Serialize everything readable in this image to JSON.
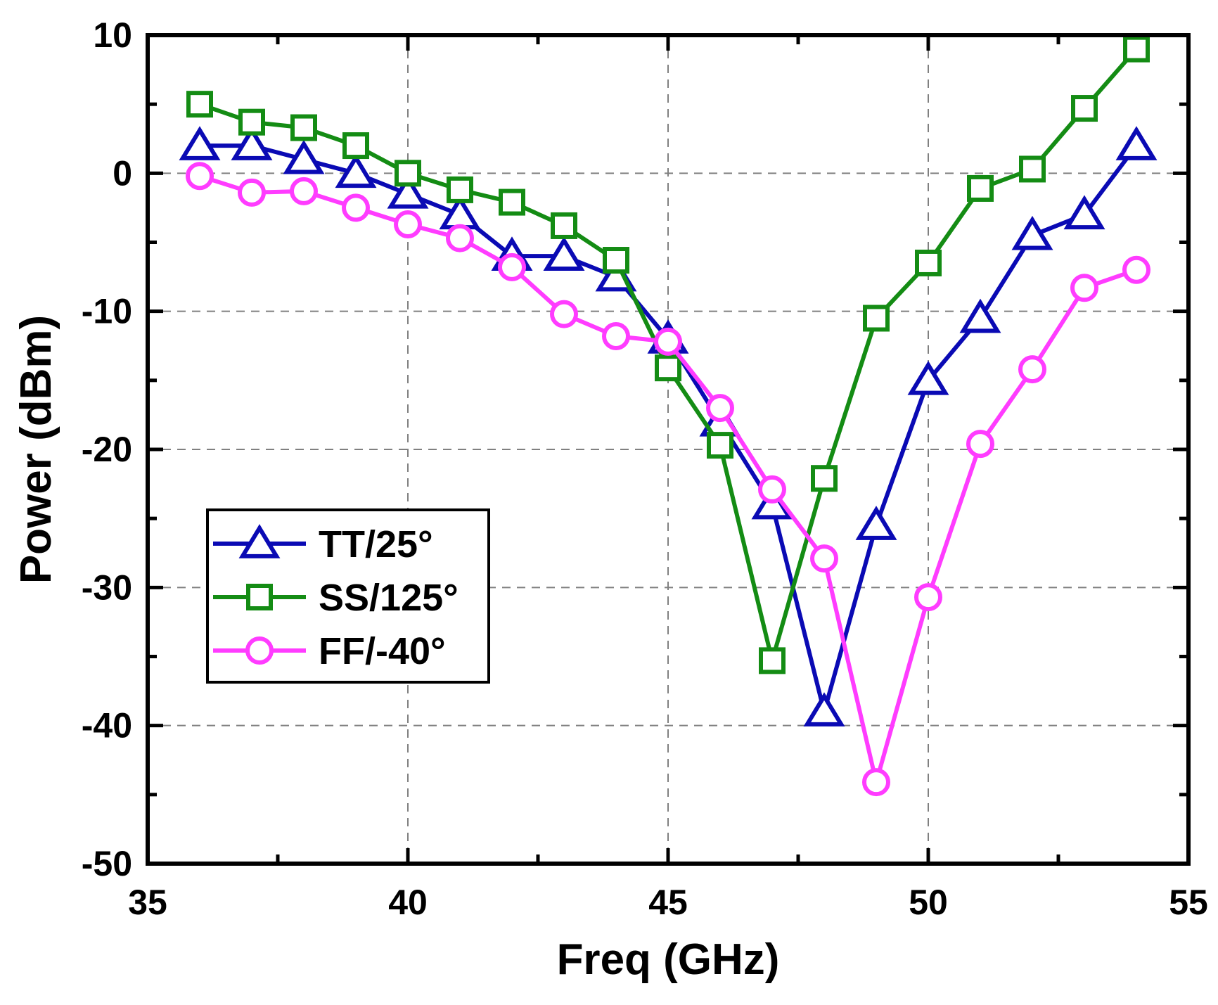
{
  "chart_data": {
    "type": "line",
    "title": "",
    "xlabel": "Freq (GHz)",
    "ylabel": "Power (dBm)",
    "xlim": [
      35,
      55
    ],
    "ylim": [
      -50,
      10
    ],
    "xticks": [
      35,
      40,
      45,
      50,
      55
    ],
    "yticks": [
      -50,
      -40,
      -30,
      -20,
      -10,
      0,
      10
    ],
    "xtick_labels": [
      "35",
      "40",
      "45",
      "50",
      "55"
    ],
    "ytick_labels": [
      "-50",
      "-40",
      "-30",
      "-20",
      "-10",
      "0",
      "10"
    ],
    "x_minor_step": 2.5,
    "y_minor_step": 5,
    "grid": true,
    "legend_position": "lower-left",
    "x": [
      36,
      37,
      38,
      39,
      40,
      41,
      42,
      43,
      44,
      45,
      46,
      47,
      48,
      49,
      50,
      51,
      52,
      53,
      54
    ],
    "series": [
      {
        "name": "TT/25°",
        "color": "#0a0ab4",
        "marker": "triangle",
        "values": [
          2,
          2,
          1,
          0,
          -1.5,
          -3,
          -6,
          -6,
          -7.5,
          -12,
          -18,
          -24,
          -39,
          -25.5,
          -15,
          -10.5,
          -4.5,
          -3,
          2
        ]
      },
      {
        "name": "SS/125°",
        "color": "#148c14",
        "marker": "square",
        "values": [
          5,
          3.7,
          3.3,
          2,
          0,
          -1.2,
          -2.1,
          -3.8,
          -6.3,
          -14.1,
          -19.7,
          -35.3,
          -22.1,
          -10.5,
          -6.5,
          -1.1,
          0.3,
          4.7,
          9
        ]
      },
      {
        "name": "FF/-40°",
        "color": "#ff3cff",
        "marker": "circle",
        "values": [
          -0.2,
          -1.4,
          -1.3,
          -2.5,
          -3.7,
          -4.7,
          -6.8,
          -10.2,
          -11.8,
          -12.2,
          -17,
          -22.9,
          -27.9,
          -44.1,
          -30.7,
          -19.6,
          -14.2,
          -8.3,
          -7
        ]
      }
    ]
  }
}
